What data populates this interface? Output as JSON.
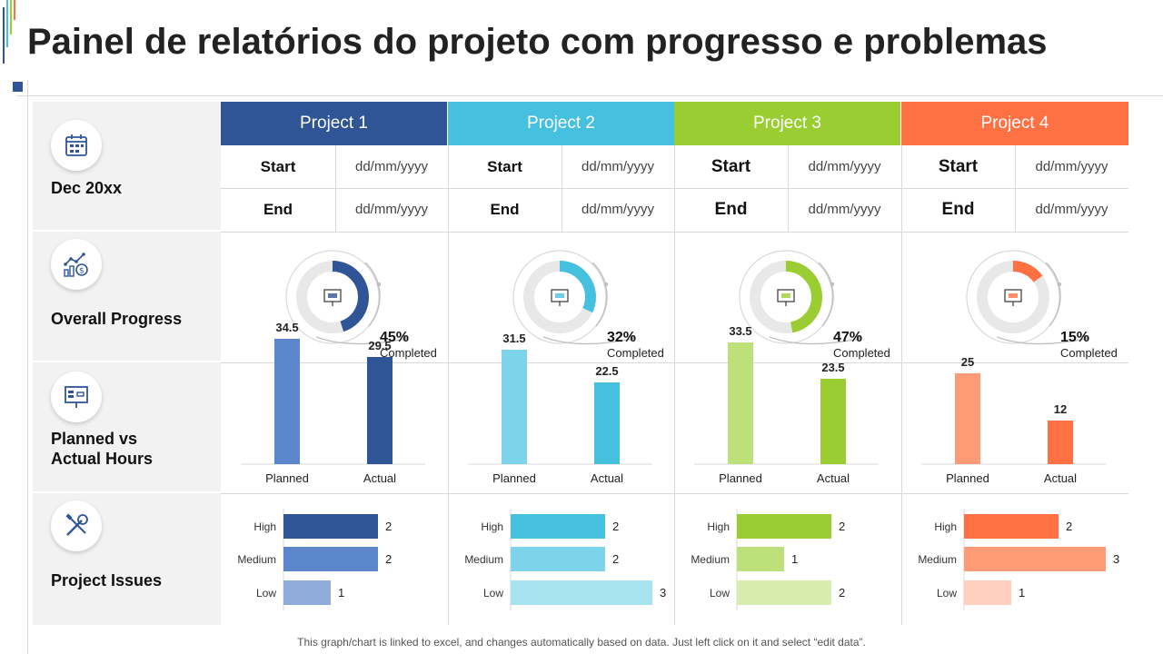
{
  "page": {
    "title": "Painel de relatórios do projeto com progresso e problemas",
    "footnote": "This graph/chart is linked to excel, and changes automatically based on data. Just left click on it and select “edit data”."
  },
  "left": {
    "date_label": "Dec 20xx",
    "progress_label": "Overall Progress",
    "hours_label": "Planned vs\nActual Hours",
    "issues_label": "Project Issues",
    "icons": [
      "calendar-icon",
      "growth-chart-icon",
      "presentation-board-icon",
      "tools-icon"
    ]
  },
  "labels": {
    "start": "Start",
    "end": "End",
    "completed": "Completed",
    "planned": "Planned",
    "actual": "Actual",
    "high": "High",
    "medium": "Medium",
    "low": "Low"
  },
  "projects": [
    {
      "name": "Project 1",
      "color": "#2f5597",
      "light": "#5b86cc",
      "lighter": "#8eabd9",
      "start": "dd/mm/yyyy",
      "end": "dd/mm/yyyy",
      "progress_text": "45%",
      "icon": "flowchart-icon"
    },
    {
      "name": "Project 2",
      "color": "#45c1df",
      "light": "#7dd4ea",
      "lighter": "#a6e2f0",
      "start": "dd/mm/yyyy",
      "end": "dd/mm/yyyy",
      "progress_text": "32%",
      "icon": "presentation-chart-icon"
    },
    {
      "name": "Project 3",
      "color": "#9acd32",
      "light": "#bde07b",
      "lighter": "#d8ecb0",
      "start": "dd/mm/yyyy",
      "end": "dd/mm/yyyy",
      "progress_text": "47%",
      "icon": "gear-board-icon"
    },
    {
      "name": "Project 4",
      "color": "#ff7043",
      "light": "#ff9a76",
      "lighter": "#ffcfc0",
      "start": "dd/mm/yyyy",
      "end": "dd/mm/yyyy",
      "progress_text": "15%",
      "icon": "report-board-icon"
    }
  ],
  "chart_data": [
    {
      "type": "pie",
      "chart": "overall-progress-donuts",
      "categories": [
        "Project 1",
        "Project 2",
        "Project 3",
        "Project 4"
      ],
      "values": [
        45,
        32,
        47,
        15
      ],
      "unit": "%"
    },
    {
      "type": "bar",
      "chart": "planned-vs-actual-hours",
      "categories": [
        "Planned",
        "Actual"
      ],
      "series": [
        {
          "name": "Project 1",
          "values": [
            34.5,
            29.5
          ]
        },
        {
          "name": "Project 2",
          "values": [
            31.5,
            22.5
          ]
        },
        {
          "name": "Project 3",
          "values": [
            33.5,
            23.5
          ]
        },
        {
          "name": "Project 4",
          "values": [
            25,
            12
          ]
        }
      ],
      "ylim": [
        0,
        40
      ]
    },
    {
      "type": "bar",
      "orientation": "horizontal",
      "chart": "project-issues",
      "categories": [
        "High",
        "Medium",
        "Low"
      ],
      "series": [
        {
          "name": "Project 1",
          "values": [
            2,
            2,
            1
          ]
        },
        {
          "name": "Project 2",
          "values": [
            2,
            2,
            3
          ]
        },
        {
          "name": "Project 3",
          "values": [
            2,
            1,
            2
          ]
        },
        {
          "name": "Project 4",
          "values": [
            2,
            3,
            1
          ]
        }
      ],
      "xlim": [
        0,
        3
      ]
    }
  ]
}
